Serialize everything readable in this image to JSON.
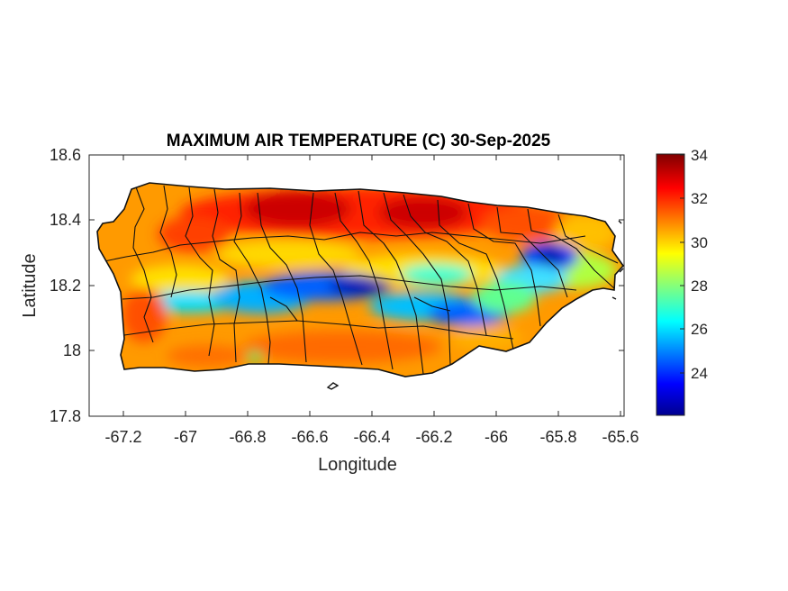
{
  "title": "MAXIMUM AIR TEMPERATURE (C) 30-Sep-2025",
  "xlabel": "Longitude",
  "ylabel": "Latitude",
  "x_ticks": [
    "-67.2",
    "-67",
    "-66.8",
    "-66.6",
    "-66.4",
    "-66.2",
    "-66",
    "-65.8",
    "-65.6"
  ],
  "y_ticks": [
    "18.6",
    "18.4",
    "18.2",
    "18",
    "17.8"
  ],
  "colorbar": {
    "ticks": [
      "34",
      "32",
      "30",
      "28",
      "26",
      "24"
    ],
    "range": [
      22.0,
      34.0
    ],
    "colormap": "jet"
  },
  "map": {
    "region": "Puerto Rico",
    "xlim": [
      -67.3,
      -65.58
    ],
    "ylim": [
      17.8,
      18.6
    ],
    "field": "maximum air temperature (C)",
    "features": [
      "municipality boundaries",
      "coastline",
      "islets"
    ],
    "warm_zones": [
      "northern coastal plain (32-34 C)",
      "southwest corner (30-32 C)",
      "southern coast (30-32 C)"
    ],
    "cool_zones": [
      "Cordillera Central ridge (23-27 C)",
      "El Yunque / northeast highlands (22-24 C)"
    ]
  }
}
